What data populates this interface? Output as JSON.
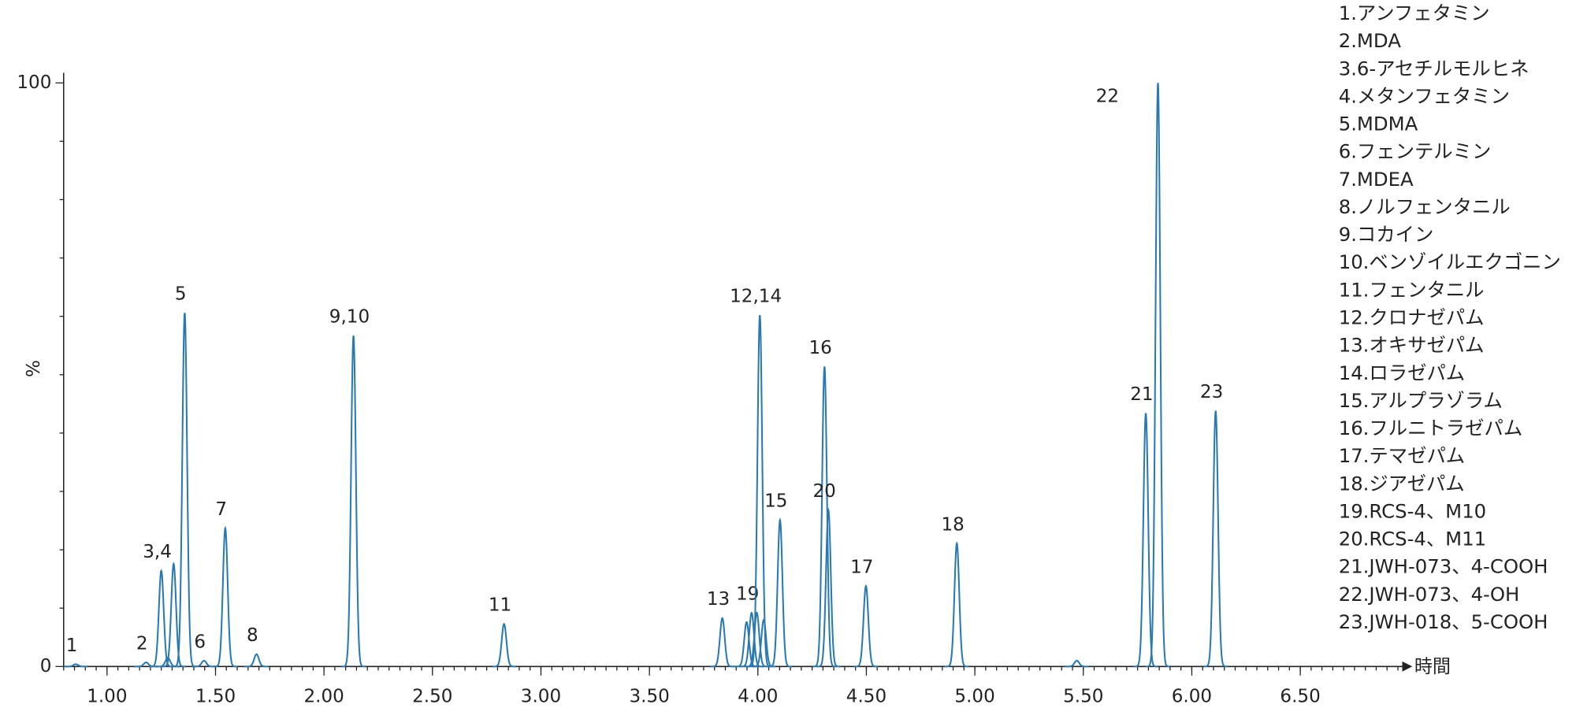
{
  "chart_data": {
    "type": "chromatogram",
    "color": "#2a79b1",
    "x_label": "時間",
    "y_label": "%",
    "xlim": [
      0.8,
      6.97
    ],
    "ylim": [
      0,
      100
    ],
    "xticks": [
      {
        "value": 1.0,
        "label": "1.00"
      },
      {
        "value": 1.5,
        "label": "1.50"
      },
      {
        "value": 2.0,
        "label": "2.00"
      },
      {
        "value": 2.5,
        "label": "2.50"
      },
      {
        "value": 3.0,
        "label": "3.00"
      },
      {
        "value": 3.5,
        "label": "3.50"
      },
      {
        "value": 4.0,
        "label": "4.00"
      },
      {
        "value": 4.5,
        "label": "4.50"
      },
      {
        "value": 5.0,
        "label": "5.00"
      },
      {
        "value": 5.5,
        "label": "5.50"
      },
      {
        "value": 6.0,
        "label": "6.00"
      },
      {
        "value": 6.5,
        "label": "6.50"
      }
    ],
    "yticks": [
      0,
      100
    ],
    "peaks": [
      {
        "label": "1",
        "time": 0.856,
        "height": 0.4
      },
      {
        "label": "2",
        "time": 1.18,
        "height": 0.7
      },
      {
        "label": "3,4",
        "time": 1.25,
        "height": 16.4
      },
      {
        "label": null,
        "time": 1.28,
        "height": 1.5
      },
      {
        "label": null,
        "time": 1.307,
        "height": 17.6
      },
      {
        "label": "5",
        "time": 1.358,
        "height": 60.6
      },
      {
        "label": "6",
        "time": 1.447,
        "height": 1.0
      },
      {
        "label": "7",
        "time": 1.545,
        "height": 23.7
      },
      {
        "label": "8",
        "time": 1.689,
        "height": 2.1
      },
      {
        "label": "9,10",
        "time": 2.136,
        "height": 56.7
      },
      {
        "label": "11",
        "time": 2.83,
        "height": 7.3
      },
      {
        "label": "13",
        "time": 3.836,
        "height": 8.3
      },
      {
        "label": null,
        "time": 3.948,
        "height": 7.6
      },
      {
        "label": "19",
        "time": 3.971,
        "height": 9.2
      },
      {
        "label": null,
        "time": 3.995,
        "height": 9.2
      },
      {
        "label": "12,14",
        "time": 4.009,
        "height": 60.2
      },
      {
        "label": null,
        "time": 4.027,
        "height": 8.0
      },
      {
        "label": "15",
        "time": 4.102,
        "height": 25.1
      },
      {
        "label": "16",
        "time": 4.307,
        "height": 51.4
      },
      {
        "label": "20",
        "time": 4.325,
        "height": 26.8
      },
      {
        "label": "17",
        "time": 4.498,
        "height": 13.8
      },
      {
        "label": "18",
        "time": 4.917,
        "height": 21.1
      },
      {
        "label": null,
        "time": 5.47,
        "height": 1.0
      },
      {
        "label": "21",
        "time": 5.788,
        "height": 43.4
      },
      {
        "label": "22",
        "time": 5.844,
        "height": 100
      },
      {
        "label": "23",
        "time": 6.11,
        "height": 43.8
      }
    ],
    "legend": [
      "1.アンフェタミン",
      "2.MDA",
      "3.6-アセチルモルヒネ",
      "4.メタンフェタミン",
      "5.MDMA",
      "6.フェンテルミン",
      "7.MDEA",
      "8.ノルフェンタニル",
      "9.コカイン",
      "10.ベンゾイルエクゴニン",
      "11.フェンタニル",
      "12.クロナゼパム",
      "13.オキサゼパム",
      "14.ロラゼパム",
      "15.アルプラゾラム",
      "16.フルニトラゼパム",
      "17.テマゼパム",
      "18.ジアゼパム",
      "19.RCS-4、M10",
      "20.RCS-4、M11",
      "21.JWH-073、4-COOH",
      "22.JWH-073、4-OH",
      "23.JWH-018、5-COOH"
    ]
  }
}
